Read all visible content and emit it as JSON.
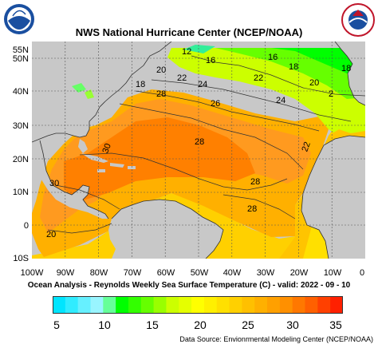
{
  "title": "NWS National Hurricane Center (NCEP/NOAA)",
  "subtitle": "Ocean Analysis - Reynolds Weekly Sea Surface Temperature (C) - valid: 2022 - 09 - 10",
  "source": "Data Source: Envionrmental Modeling Center (NCEP/NOAA)",
  "logos": {
    "left_text": "NOAA",
    "right_text": "NATIONAL WEATHER SERVICE"
  },
  "latitude_labels": [
    "55N",
    "50N",
    "40N",
    "30N",
    "20N",
    "10N",
    "0",
    "10S"
  ],
  "longitude_labels": [
    "100W",
    "90W",
    "80W",
    "70W",
    "60W",
    "50W",
    "40W",
    "30W",
    "20W",
    "10W",
    "0"
  ],
  "contour_labels": [
    "12",
    "16",
    "16",
    "18",
    "20",
    "22",
    "24",
    "22",
    "20",
    "18",
    "18",
    "28",
    "26",
    "24",
    "2",
    "28",
    "30",
    "22",
    "28",
    "30",
    "28",
    "20"
  ],
  "colorbar": {
    "ticks": [
      "5",
      "10",
      "15",
      "20",
      "25",
      "30",
      "35"
    ],
    "colors": [
      "#00e5ff",
      "#30ecff",
      "#66f0ff",
      "#99f5ff",
      "#66ff99",
      "#00ff00",
      "#33ff00",
      "#66ff00",
      "#99ff00",
      "#ccff00",
      "#e5ff00",
      "#ffff00",
      "#fff000",
      "#ffe000",
      "#ffd000",
      "#ffc000",
      "#ffb000",
      "#ffa000",
      "#ff9000",
      "#ff7800",
      "#ff6000",
      "#ff4000",
      "#ff2000"
    ]
  },
  "colors": {
    "land": "#c8c8c8",
    "warm": "#ff9a1f",
    "hot": "#ff8000",
    "mid": "#ffc400",
    "cool": "#b8ff1a",
    "cold": "#33ee33"
  }
}
